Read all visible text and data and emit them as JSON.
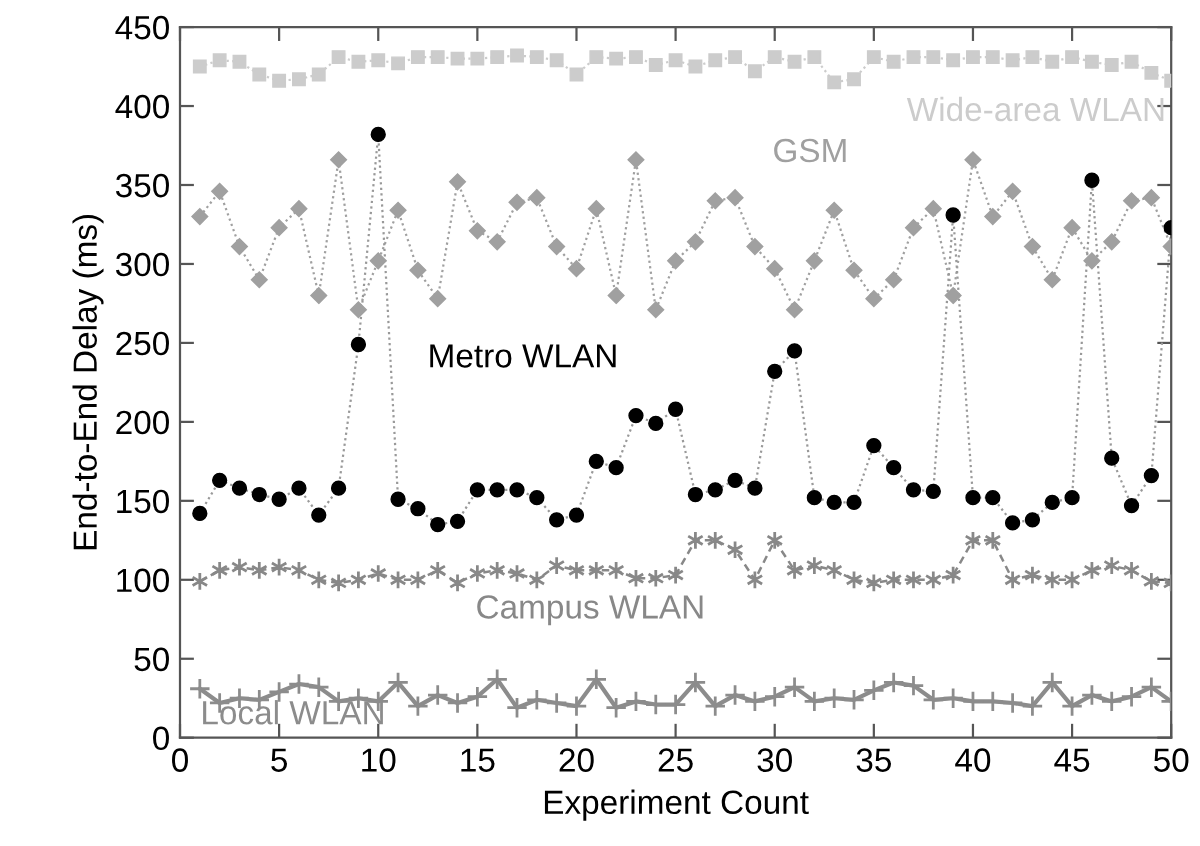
{
  "chart_data": {
    "type": "line",
    "xlabel": "Experiment Count",
    "ylabel": "End-to-End Delay (ms)",
    "x": [
      1,
      2,
      3,
      4,
      5,
      6,
      7,
      8,
      9,
      10,
      11,
      12,
      13,
      14,
      15,
      16,
      17,
      18,
      19,
      20,
      21,
      22,
      23,
      24,
      25,
      26,
      27,
      28,
      29,
      30,
      31,
      32,
      33,
      34,
      35,
      36,
      37,
      38,
      39,
      40,
      41,
      42,
      43,
      44,
      45,
      46,
      47,
      48,
      49,
      50
    ],
    "xlim": [
      0,
      50
    ],
    "xticks": [
      0,
      5,
      10,
      15,
      20,
      25,
      30,
      35,
      40,
      45,
      50
    ],
    "ylim": [
      0,
      450
    ],
    "yticks": [
      0,
      50,
      100,
      150,
      200,
      250,
      300,
      350,
      400,
      450
    ],
    "grid": false,
    "legend": false,
    "series": [
      {
        "name": "Wide-area WLAN",
        "color": "#cccccc",
        "marker": "square",
        "line_style": "dotted",
        "values": [
          425,
          429,
          428,
          420,
          416,
          417,
          420,
          431,
          428,
          429,
          427,
          431,
          431,
          430,
          430,
          431,
          432,
          431,
          429,
          420,
          431,
          430,
          431,
          426,
          429,
          425,
          429,
          431,
          422,
          431,
          428,
          431,
          415,
          417,
          431,
          428,
          431,
          431,
          429,
          431,
          431,
          429,
          431,
          428,
          431,
          428,
          426,
          428,
          421,
          416
        ]
      },
      {
        "name": "GSM",
        "color": "#a0a0a0",
        "marker": "diamond",
        "line_style": "dotted",
        "values": [
          330,
          346,
          311,
          290,
          323,
          335,
          280,
          366,
          271,
          302,
          334,
          296,
          278,
          352,
          321,
          314,
          339,
          342,
          311,
          297,
          335,
          280,
          366,
          271,
          302,
          314,
          340,
          342,
          311,
          297,
          271,
          302,
          334,
          296,
          278,
          290,
          323,
          335,
          280,
          366,
          330,
          346,
          311,
          290,
          323,
          302,
          314,
          340,
          342,
          311
        ]
      },
      {
        "name": "Metro WLAN",
        "color": "#000000",
        "marker": "circle",
        "line_style": "dotted",
        "values": [
          142,
          163,
          158,
          154,
          151,
          158,
          141,
          158,
          249,
          382,
          151,
          145,
          135,
          137,
          157,
          157,
          157,
          152,
          138,
          141,
          175,
          171,
          204,
          199,
          208,
          154,
          157,
          163,
          158,
          232,
          245,
          152,
          149,
          149,
          185,
          171,
          157,
          156,
          331,
          152,
          152,
          136,
          138,
          149,
          152,
          353,
          177,
          147,
          166,
          323
        ]
      },
      {
        "name": "Campus WLAN",
        "color": "#888888",
        "marker": "cross",
        "line_style": "dashed",
        "values": [
          99,
          106,
          108,
          106,
          108,
          106,
          100,
          98,
          100,
          104,
          100,
          100,
          106,
          98,
          104,
          106,
          104,
          100,
          109,
          106,
          106,
          106,
          101,
          101,
          103,
          125,
          125,
          119,
          100,
          125,
          106,
          109,
          106,
          100,
          98,
          100,
          100,
          100,
          103,
          125,
          125,
          100,
          103,
          100,
          100,
          106,
          109,
          106,
          99,
          98
        ]
      },
      {
        "name": "Local WLAN",
        "color": "#8c8c8c",
        "marker": "plus",
        "line_style": "solid",
        "values": [
          31,
          22,
          25,
          24,
          29,
          34,
          32,
          23,
          25,
          23,
          35,
          20,
          27,
          22,
          26,
          37,
          19,
          24,
          22,
          20,
          37,
          19,
          23,
          21,
          21,
          35,
          20,
          27,
          23,
          26,
          32,
          23,
          25,
          24,
          30,
          35,
          33,
          24,
          25,
          23,
          23,
          22,
          20,
          35,
          20,
          27,
          23,
          26,
          32,
          23
        ]
      }
    ]
  }
}
